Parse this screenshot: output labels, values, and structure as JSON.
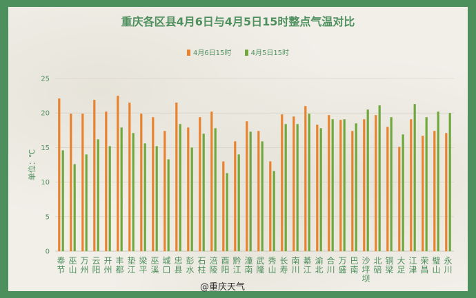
{
  "chart_data": {
    "type": "bar",
    "title": "重庆各区县4月6日与4月5日15时整点气温对比",
    "ylabel": "单位：℃",
    "xlabel": "",
    "ylim": [
      0,
      25
    ],
    "yticks": [
      0,
      5,
      10,
      15,
      20,
      25
    ],
    "grid": true,
    "legend_position": "top-center",
    "categories": [
      "奉节",
      "巫山",
      "万州",
      "云阳",
      "开州",
      "丰都",
      "垫江",
      "梁平",
      "巫溪",
      "城口",
      "忠县",
      "彭水",
      "石柱",
      "涪陵",
      "酉阳",
      "黔江",
      "潼南",
      "武隆",
      "秀山",
      "长寿",
      "南川",
      "綦江",
      "渝北",
      "合川",
      "万盛",
      "巴南",
      "沙坪坝",
      "北碚",
      "铜梁",
      "大足",
      "江津",
      "荣昌",
      "璧山",
      "永川"
    ],
    "series": [
      {
        "name": "4月6日15时",
        "color": "#e8822e",
        "values": [
          22.1,
          19.9,
          19.9,
          21.9,
          20.2,
          22.5,
          21.5,
          19.9,
          19.4,
          17.4,
          21.5,
          17.9,
          19.4,
          20.2,
          13.0,
          15.9,
          18.8,
          17.4,
          13.0,
          19.8,
          19.5,
          21.0,
          18.3,
          19.7,
          19.0,
          17.4,
          19.1,
          19.7,
          18.0,
          15.1,
          19.1,
          16.7,
          17.4,
          17.1
        ]
      },
      {
        "name": "4月5日15时",
        "color": "#6fa83c",
        "values": [
          14.6,
          12.6,
          14.0,
          16.2,
          15.2,
          17.9,
          17.1,
          15.6,
          15.2,
          13.3,
          18.4,
          15.0,
          17.0,
          17.8,
          11.3,
          14.0,
          17.3,
          15.9,
          11.6,
          18.4,
          18.4,
          19.9,
          17.8,
          19.1,
          19.1,
          18.5,
          20.5,
          21.1,
          19.4,
          16.9,
          21.3,
          19.4,
          20.2,
          20.0
        ]
      }
    ]
  },
  "watermark": "@重庆天气"
}
